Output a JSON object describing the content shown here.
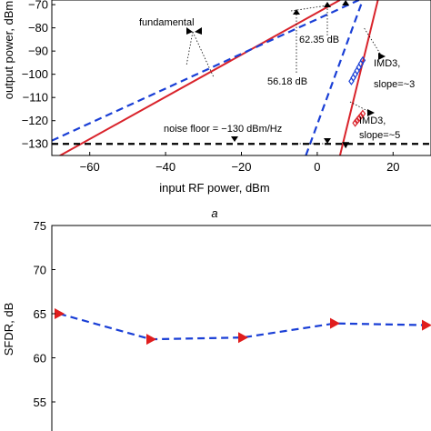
{
  "panel_label": "a",
  "chart_data": [
    {
      "type": "line",
      "xlabel": "input RF power, dBm",
      "ylabel": "output power, dBm",
      "xlim": [
        -70,
        30
      ],
      "ylim": [
        -135,
        -68
      ],
      "xticks": [
        -60,
        -40,
        -20,
        0,
        20
      ],
      "xtick_labels": [
        "−60",
        "−40",
        "−20",
        "0",
        "20"
      ],
      "yticks": [
        -70,
        -80,
        -90,
        -100,
        -110,
        -120,
        -130
      ],
      "ytick_labels": [
        "−70",
        "−80",
        "−90",
        "−100",
        "−110",
        "−120",
        "−130"
      ],
      "colors": {
        "red": "#d9232b",
        "blue": "#1a3fd6",
        "black": "#000000"
      },
      "series": [
        {
          "style": "red-solid",
          "x": [
            -70,
            6
          ],
          "y": [
            -137,
            -68
          ]
        },
        {
          "style": "blue-dashed",
          "x": [
            -70,
            11
          ],
          "y": [
            -128.6,
            -68
          ]
        },
        {
          "style": "red-solid",
          "x": [
            6,
            16
          ],
          "y": [
            -135,
            -68
          ]
        },
        {
          "style": "blue-dashed",
          "x": [
            -3,
            12
          ],
          "y": [
            -135,
            -68
          ]
        },
        {
          "style": "black-dashed",
          "x": [
            -70,
            30
          ],
          "y": [
            -130,
            -130
          ]
        },
        {
          "style": "blue-markers",
          "x": [
            9,
            9.5,
            10,
            10.5,
            11,
            11.5,
            12
          ],
          "y": [
            -103,
            -101.5,
            -100,
            -98.5,
            -97,
            -95.5,
            -94
          ]
        },
        {
          "style": "red-markers",
          "x": [
            10,
            10.5,
            11,
            11.5,
            12
          ],
          "y": [
            -121,
            -120,
            -119,
            -118,
            -117
          ]
        }
      ],
      "annotations": {
        "fundamental": "fundamental",
        "gain_6235": "62.35 dB",
        "gain_5618": "56.18 dB",
        "imd3_slope3_l1": "IMD3,",
        "imd3_slope3_l2": "slope=~3",
        "imd3_slope5_l1": "IMD3,",
        "imd3_slope5_l2": "slope=~5",
        "noise_floor": "noise floor = −130 dBm/Hz"
      }
    },
    {
      "type": "line",
      "ylabel": "SFDR, dB",
      "ylim": [
        50,
        75
      ],
      "yticks": [
        55,
        60,
        65,
        70,
        75
      ],
      "ytick_labels": [
        "55",
        "60",
        "65",
        "70",
        "75"
      ],
      "x": [
        1,
        2,
        3,
        4,
        5
      ],
      "values": [
        65,
        62.1,
        62.3,
        63.9,
        63.7
      ],
      "colors": {
        "line": "#1a3fd6",
        "marker": "#e01d1d"
      }
    }
  ]
}
